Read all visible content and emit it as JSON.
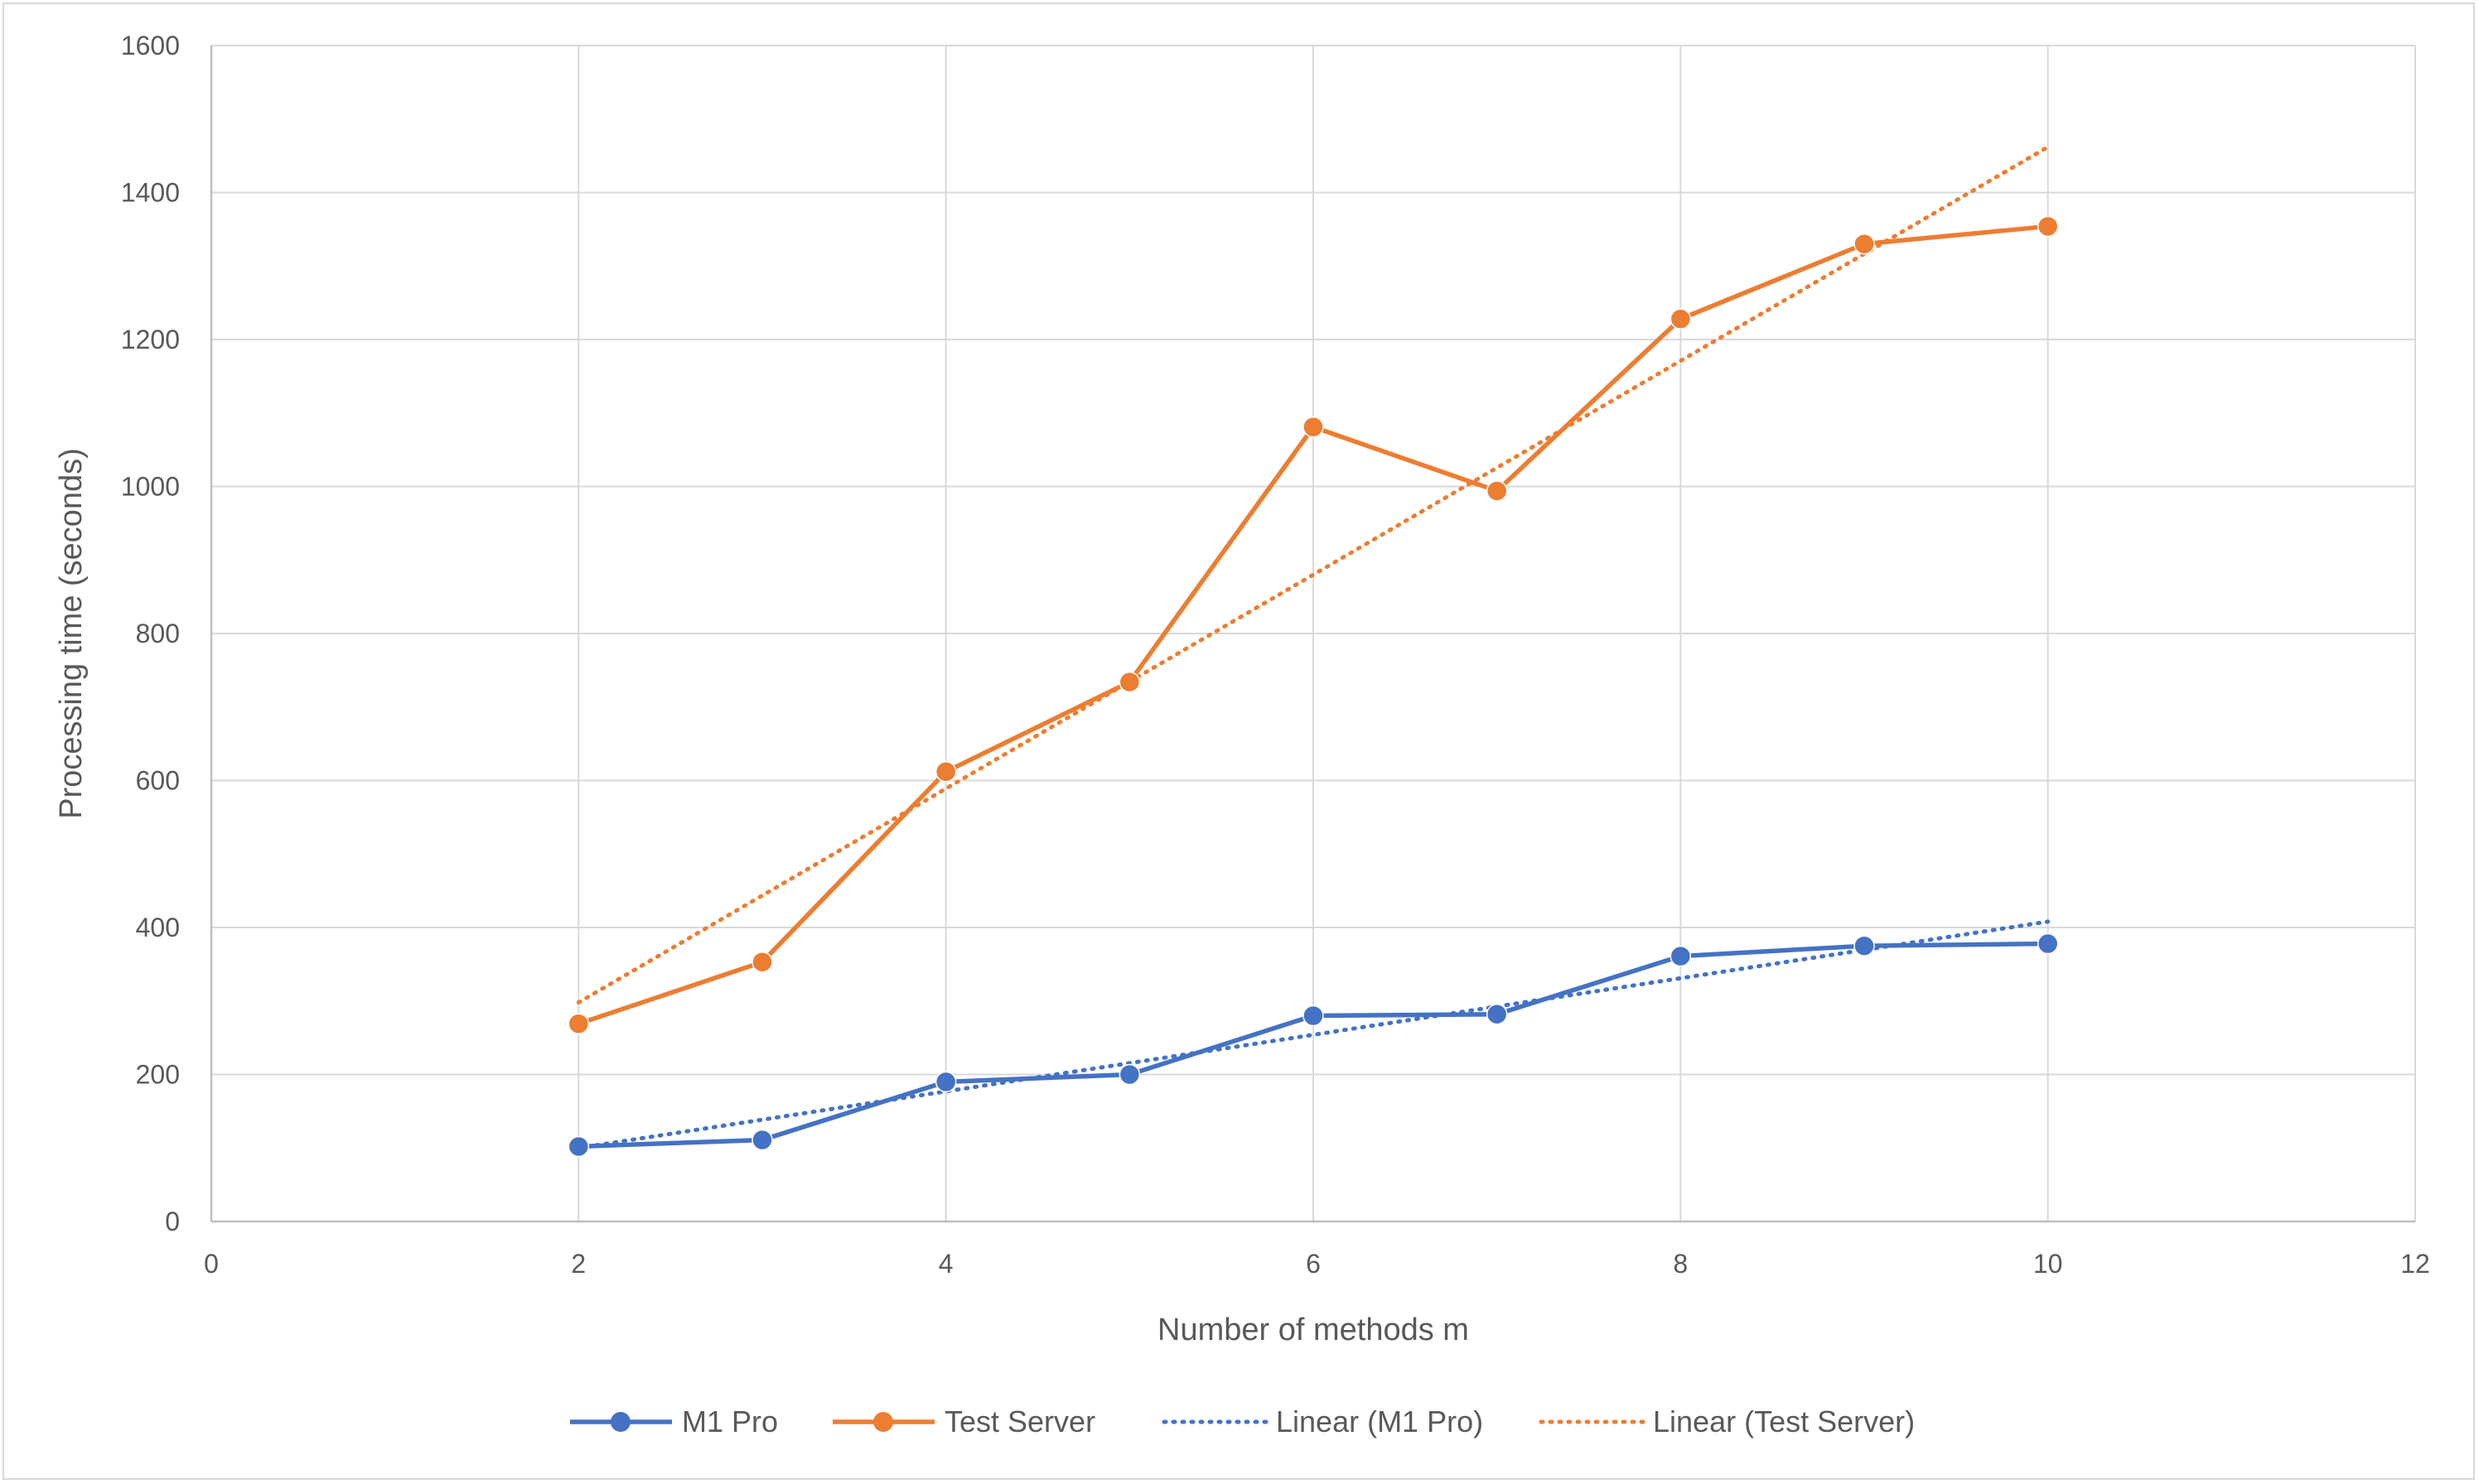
{
  "chart_data": {
    "type": "line",
    "xlabel": "Number of methods m",
    "ylabel": "Processing time (seconds)",
    "xlim": [
      0,
      12
    ],
    "ylim": [
      0,
      1600
    ],
    "x_ticks": [
      0,
      2,
      4,
      6,
      8,
      10,
      12
    ],
    "y_ticks": [
      0,
      200,
      400,
      600,
      800,
      1000,
      1200,
      1400,
      1600
    ],
    "grid": true,
    "legend_position": "bottom",
    "series": [
      {
        "name": "M1 Pro",
        "color": "#4472c4",
        "marker": "circle",
        "x": [
          2,
          3,
          4,
          5,
          6,
          7,
          8,
          9,
          10
        ],
        "values": [
          102,
          111,
          190,
          200,
          280,
          282,
          361,
          375,
          378
        ]
      },
      {
        "name": "Test Server",
        "color": "#ed7d31",
        "marker": "circle",
        "x": [
          2,
          3,
          4,
          5,
          6,
          7,
          8,
          9,
          10
        ],
        "values": [
          269,
          353,
          612,
          734,
          1081,
          994,
          1228,
          1330,
          1354
        ]
      }
    ],
    "trendlines": [
      {
        "name": "Linear (M1 Pro)",
        "color": "#4472c4",
        "style": "dotted",
        "x": [
          2,
          10
        ],
        "values": [
          100,
          408
        ]
      },
      {
        "name": "Linear (Test Server)",
        "color": "#ed7d31",
        "style": "dotted",
        "x": [
          2,
          10
        ],
        "values": [
          298,
          1462
        ]
      }
    ]
  }
}
